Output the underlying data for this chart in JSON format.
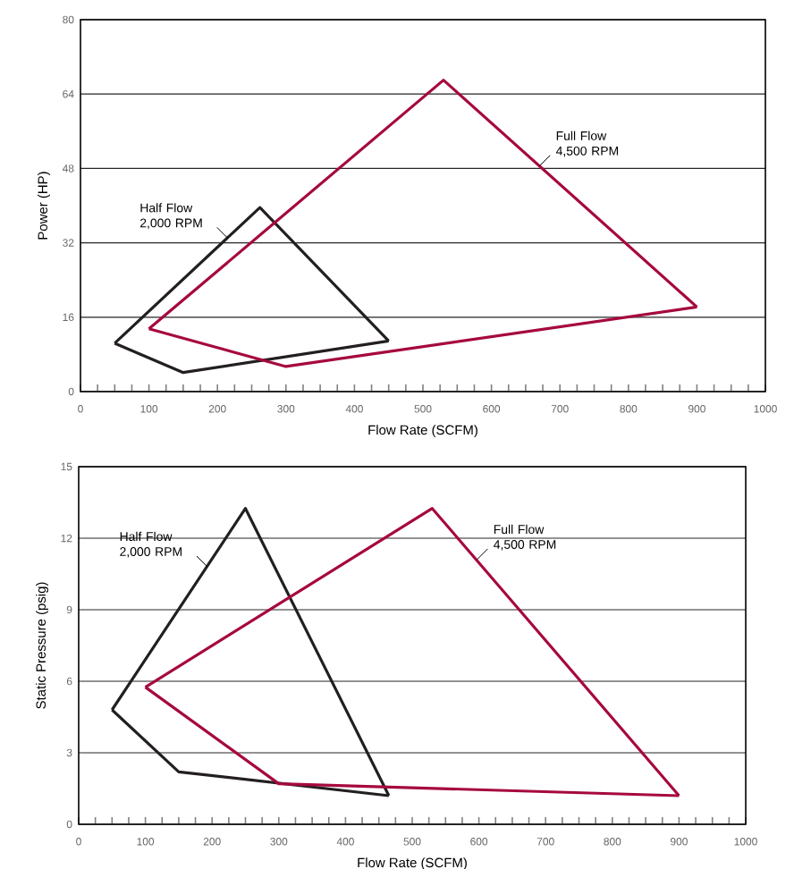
{
  "chart_data": [
    {
      "type": "line",
      "xlabel": "Flow Rate (SCFM)",
      "ylabel": "Power (HP)",
      "xlim": [
        0,
        1000
      ],
      "ylim": [
        0,
        80
      ],
      "xticks": [
        0,
        100,
        200,
        300,
        400,
        500,
        600,
        700,
        800,
        900,
        1000
      ],
      "yticks": [
        0,
        16,
        32,
        48,
        64,
        80
      ],
      "grid": "y",
      "series": [
        {
          "color": "#231f20",
          "x": [
            50,
            262,
            450
          ],
          "values": [
            10.4,
            39.6,
            10.9
          ]
        },
        {
          "color": "#231f20",
          "x": [
            50,
            150,
            450
          ],
          "values": [
            10.4,
            4.1,
            10.9
          ]
        },
        {
          "color": "#a6093d",
          "x": [
            100,
            530,
            900
          ],
          "values": [
            13.5,
            67,
            18.2
          ]
        },
        {
          "color": "#a6093d",
          "x": [
            100,
            300,
            900
          ],
          "values": [
            13.5,
            5.4,
            18.2
          ]
        }
      ],
      "annotations": [
        {
          "text": "Half Flow 2,000 RPM",
          "x": 215,
          "y": 33
        },
        {
          "text": "Full Flow 4,500 RPM",
          "x": 670,
          "y": 48.5
        }
      ]
    },
    {
      "type": "line",
      "xlabel": "Flow Rate (SCFM)",
      "ylabel": "Static Pressure (psig)",
      "xlim": [
        0,
        1000
      ],
      "ylim": [
        0,
        15
      ],
      "xticks": [
        0,
        100,
        200,
        300,
        400,
        500,
        600,
        700,
        800,
        900,
        1000
      ],
      "yticks": [
        0,
        3,
        6,
        9,
        12,
        15
      ],
      "grid": "y",
      "series": [
        {
          "color": "#231f20",
          "x": [
            50,
            250,
            465
          ],
          "values": [
            4.8,
            13.25,
            1.2
          ]
        },
        {
          "color": "#231f20",
          "x": [
            50,
            150,
            465
          ],
          "values": [
            4.8,
            2.2,
            1.2
          ]
        },
        {
          "color": "#a6093d",
          "x": [
            100,
            530,
            900
          ],
          "values": [
            5.75,
            13.25,
            1.2
          ]
        },
        {
          "color": "#a6093d",
          "x": [
            100,
            300,
            900
          ],
          "values": [
            5.75,
            1.7,
            1.2
          ]
        }
      ],
      "annotations": [
        {
          "text": "Half Flow 2,000 RPM",
          "x": 193,
          "y": 10.8
        },
        {
          "text": "Full Flow 4,500 RPM",
          "x": 597,
          "y": 11.1
        }
      ]
    }
  ]
}
